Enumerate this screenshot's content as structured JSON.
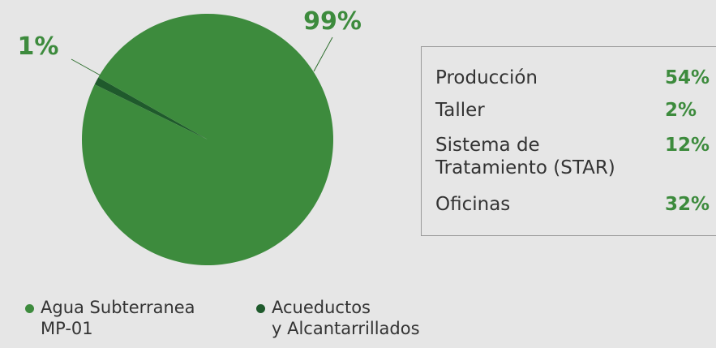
{
  "chart_data": {
    "type": "pie",
    "categories": [
      "Agua Subterranea\nMP-01",
      "Acueductos\ny Alcantarrillados"
    ],
    "values": [
      99,
      1
    ],
    "value_labels": [
      "99%",
      "1%"
    ],
    "colors": [
      "#3d8b3d",
      "#1f5a2c"
    ],
    "legend": "bottom"
  },
  "table": {
    "rows": [
      [
        "Producción",
        "54%"
      ],
      [
        "Taller",
        "2%"
      ],
      [
        "Sistema de\nTratamiento (STAR)",
        "12%"
      ],
      [
        "Oficinas",
        "32%"
      ]
    ]
  }
}
